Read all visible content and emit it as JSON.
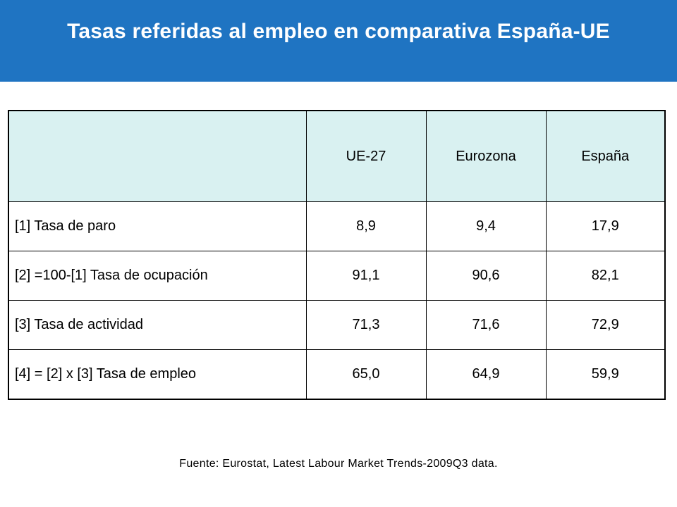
{
  "header": {
    "title": "Tasas referidas al empleo en comparativa España-UE",
    "background_color": "#1f74c2"
  },
  "table": {
    "header_background": "#d9f1f1",
    "columns": [
      "",
      "UE-27",
      "Eurozona",
      "España"
    ],
    "rows": [
      {
        "label": "[1] Tasa de paro",
        "values": [
          "8,9",
          "9,4",
          "17,9"
        ]
      },
      {
        "label": "[2] =100-[1] Tasa de ocupación",
        "values": [
          "91,1",
          "90,6",
          "82,1"
        ]
      },
      {
        "label": "[3] Tasa de actividad",
        "values": [
          "71,3",
          "71,6",
          "72,9"
        ]
      },
      {
        "label": "[4] = [2] x [3] Tasa de empleo",
        "values": [
          "65,0",
          "64,9",
          "59,9"
        ]
      }
    ]
  },
  "source": "Fuente: Eurostat, Latest Labour Market Trends-2009Q3 data."
}
